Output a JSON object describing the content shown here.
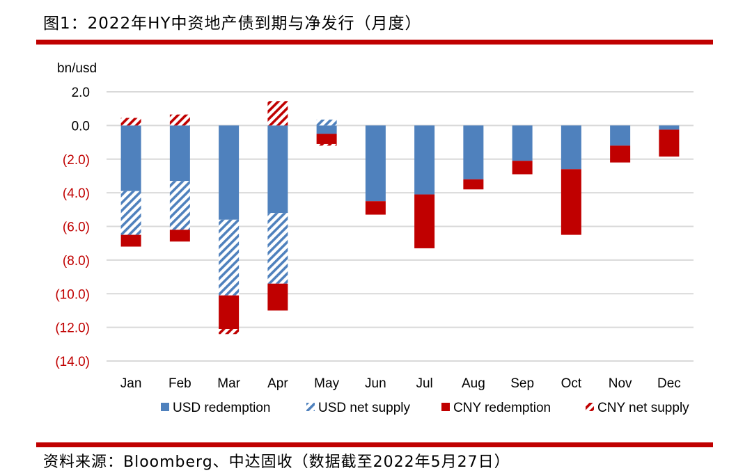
{
  "header": {
    "title": "图1：2022年HY中资地产债到期与净发行（月度）"
  },
  "footer": {
    "source": "资料来源：Bloomberg、中达固收（数据截至2022年5月27日）"
  },
  "colors": {
    "usd": "#4f81bd",
    "cny": "#c00000",
    "rule": "#c00000",
    "grid": "#d9d9d9",
    "negative_label": "#c00000"
  },
  "chart_data": {
    "type": "bar",
    "stacked": true,
    "ylabel": "bn/usd",
    "ylim": [
      -14,
      2
    ],
    "yticks": [
      {
        "value": 2,
        "label": "2.0"
      },
      {
        "value": 0,
        "label": "0.0"
      },
      {
        "value": -2,
        "label": "(2.0)"
      },
      {
        "value": -4,
        "label": "(4.0)"
      },
      {
        "value": -6,
        "label": "(6.0)"
      },
      {
        "value": -8,
        "label": "(8.0)"
      },
      {
        "value": -10,
        "label": "(10.0)"
      },
      {
        "value": -12,
        "label": "(12.0)"
      },
      {
        "value": -14,
        "label": "(14.0)"
      }
    ],
    "grid": true,
    "legend_position": "bottom",
    "categories": [
      "Jan",
      "Feb",
      "Mar",
      "Apr",
      "May",
      "Jun",
      "Jul",
      "Aug",
      "Sep",
      "Oct",
      "Nov",
      "Dec"
    ],
    "series": [
      {
        "name": "USD redemption",
        "style": "solid",
        "color": "#4f81bd",
        "values": [
          -3.9,
          -3.3,
          -5.6,
          -5.2,
          -0.5,
          -4.5,
          -4.1,
          -3.2,
          -2.1,
          -2.6,
          -1.2,
          -0.25
        ]
      },
      {
        "name": "USD net supply",
        "style": "hatched",
        "color": "#4f81bd",
        "values": [
          -2.6,
          -2.9,
          -4.5,
          -4.2,
          0.35,
          0,
          0,
          0,
          0,
          0,
          0,
          0
        ]
      },
      {
        "name": "CNY redemption",
        "style": "solid",
        "color": "#c00000",
        "values": [
          -0.7,
          -0.7,
          -2.0,
          -1.6,
          -0.6,
          -0.8,
          -3.2,
          -0.6,
          -0.8,
          -3.9,
          -1.0,
          -1.6
        ]
      },
      {
        "name": "CNY net supply",
        "style": "hatched",
        "color": "#c00000",
        "values": [
          0.45,
          0.65,
          -0.3,
          1.45,
          -0.1,
          0,
          0,
          0,
          0,
          0,
          0,
          0
        ]
      }
    ]
  }
}
